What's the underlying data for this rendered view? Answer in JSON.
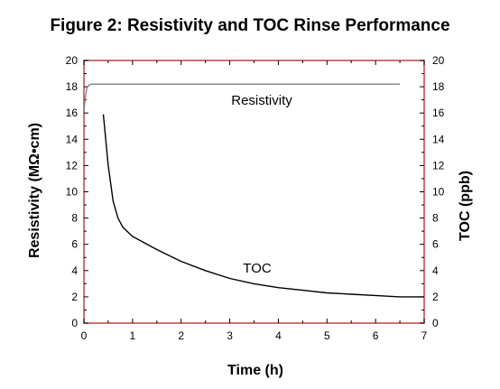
{
  "chart_data": {
    "type": "line",
    "title": "Figure 2: Resistivity and TOC Rinse Performance",
    "xlabel": "Time (h)",
    "ylabel": "Resistivity (MΩ•cm)",
    "y2label": "TOC (ppb)",
    "xlim": [
      0,
      7
    ],
    "ylim": [
      0,
      20
    ],
    "y2lim": [
      0,
      20
    ],
    "x_ticks": [
      0,
      1,
      2,
      3,
      4,
      5,
      6,
      7
    ],
    "y_ticks": [
      0,
      2,
      4,
      6,
      8,
      10,
      12,
      14,
      16,
      18,
      20
    ],
    "y2_ticks": [
      0,
      2,
      4,
      6,
      8,
      10,
      12,
      14,
      16,
      18,
      20
    ],
    "grid": false,
    "series": [
      {
        "name": "Resistivity",
        "axis": "left",
        "color": "#7f7f7f",
        "points": [
          [
            0.0,
            16.2
          ],
          [
            0.03,
            17.2
          ],
          [
            0.06,
            17.9
          ],
          [
            0.1,
            18.1
          ],
          [
            0.15,
            18.2
          ],
          [
            1,
            18.2
          ],
          [
            3,
            18.2
          ],
          [
            5,
            18.2
          ],
          [
            6.5,
            18.2
          ]
        ]
      },
      {
        "name": "TOC",
        "axis": "right",
        "color": "#000000",
        "points": [
          [
            0.4,
            15.9
          ],
          [
            0.5,
            12.0
          ],
          [
            0.6,
            9.3
          ],
          [
            0.7,
            8.0
          ],
          [
            0.8,
            7.3
          ],
          [
            1.0,
            6.6
          ],
          [
            1.5,
            5.6
          ],
          [
            2.0,
            4.7
          ],
          [
            2.5,
            4.0
          ],
          [
            3.0,
            3.4
          ],
          [
            3.5,
            3.0
          ],
          [
            4.0,
            2.7
          ],
          [
            4.5,
            2.5
          ],
          [
            5.0,
            2.3
          ],
          [
            5.5,
            2.2
          ],
          [
            6.0,
            2.1
          ],
          [
            6.5,
            2.0
          ],
          [
            7.0,
            2.0
          ]
        ]
      }
    ],
    "annotations": [
      "Resistivity",
      "TOC"
    ],
    "frame_color": "#c0504d"
  }
}
